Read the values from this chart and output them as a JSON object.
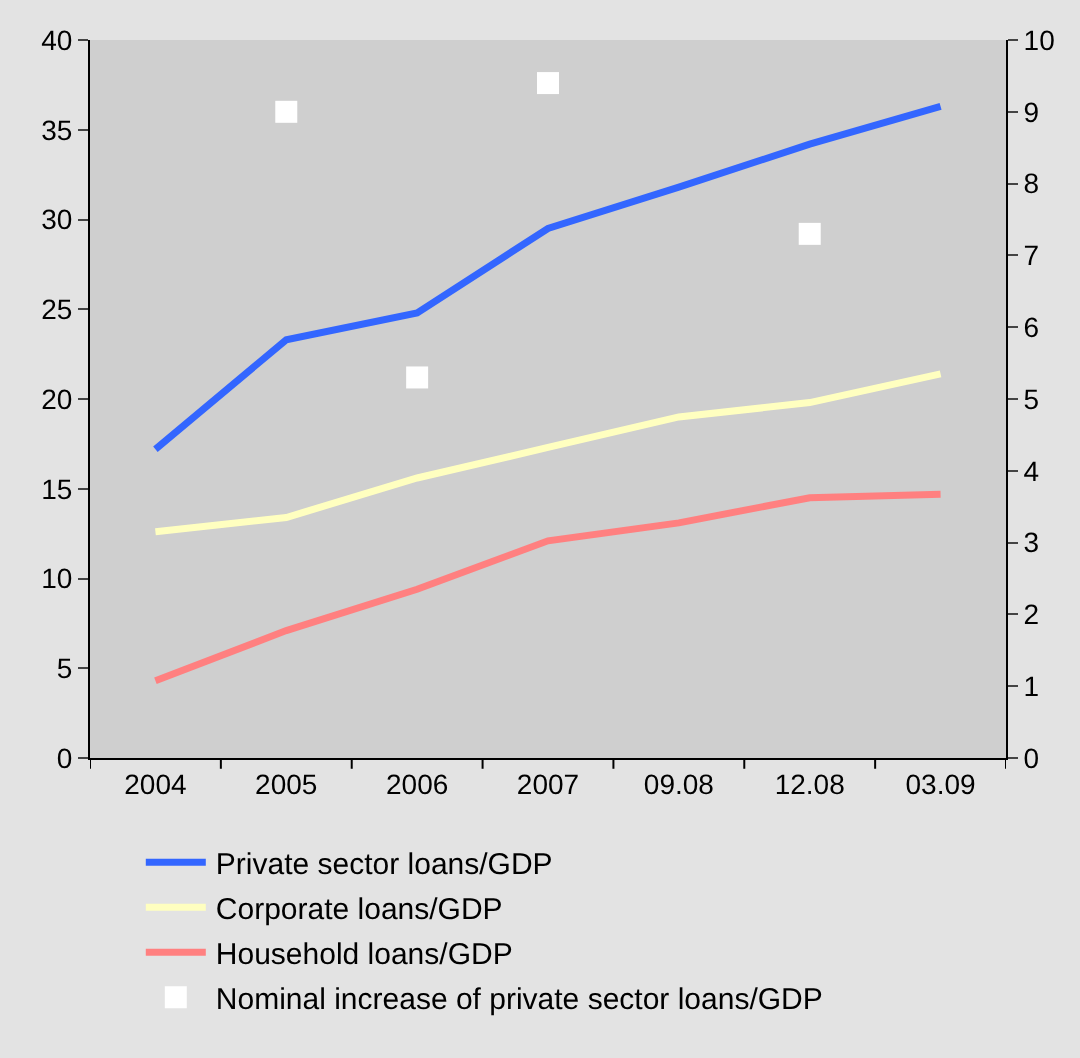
{
  "chart_data": {
    "type": "line",
    "categories": [
      "2004",
      "2005",
      "2006",
      "2007",
      "09.08",
      "12.08",
      "03.09"
    ],
    "series": [
      {
        "name": "Private sector loans/GDP",
        "color": "#3366ff",
        "values": [
          17.2,
          23.3,
          24.8,
          29.5,
          31.8,
          34.2,
          36.3
        ]
      },
      {
        "name": "Corporate loans/GDP",
        "color": "#ffffc0",
        "values": [
          12.6,
          13.4,
          15.6,
          17.3,
          19.0,
          19.8,
          21.4
        ]
      },
      {
        "name": "Household loans/GDP",
        "color": "#ff8080",
        "values": [
          4.3,
          7.1,
          9.4,
          12.1,
          13.1,
          14.5,
          14.7
        ]
      },
      {
        "name": "Nominal increase of private sector loans/GDP",
        "color": "#ffffff",
        "type": "scatter",
        "axis": "y2",
        "marker": "square",
        "values": [
          null,
          9.0,
          5.3,
          9.4,
          null,
          7.3,
          null
        ]
      }
    ],
    "ylim": [
      0,
      40
    ],
    "yticks": [
      0,
      5,
      10,
      15,
      20,
      25,
      30,
      35,
      40
    ],
    "y2lim": [
      0,
      10
    ],
    "y2ticks": [
      0,
      1,
      2,
      3,
      4,
      5,
      6,
      7,
      8,
      9,
      10
    ],
    "grid": false,
    "legend": "bottom",
    "marker": "none",
    "line_style": "solid"
  }
}
